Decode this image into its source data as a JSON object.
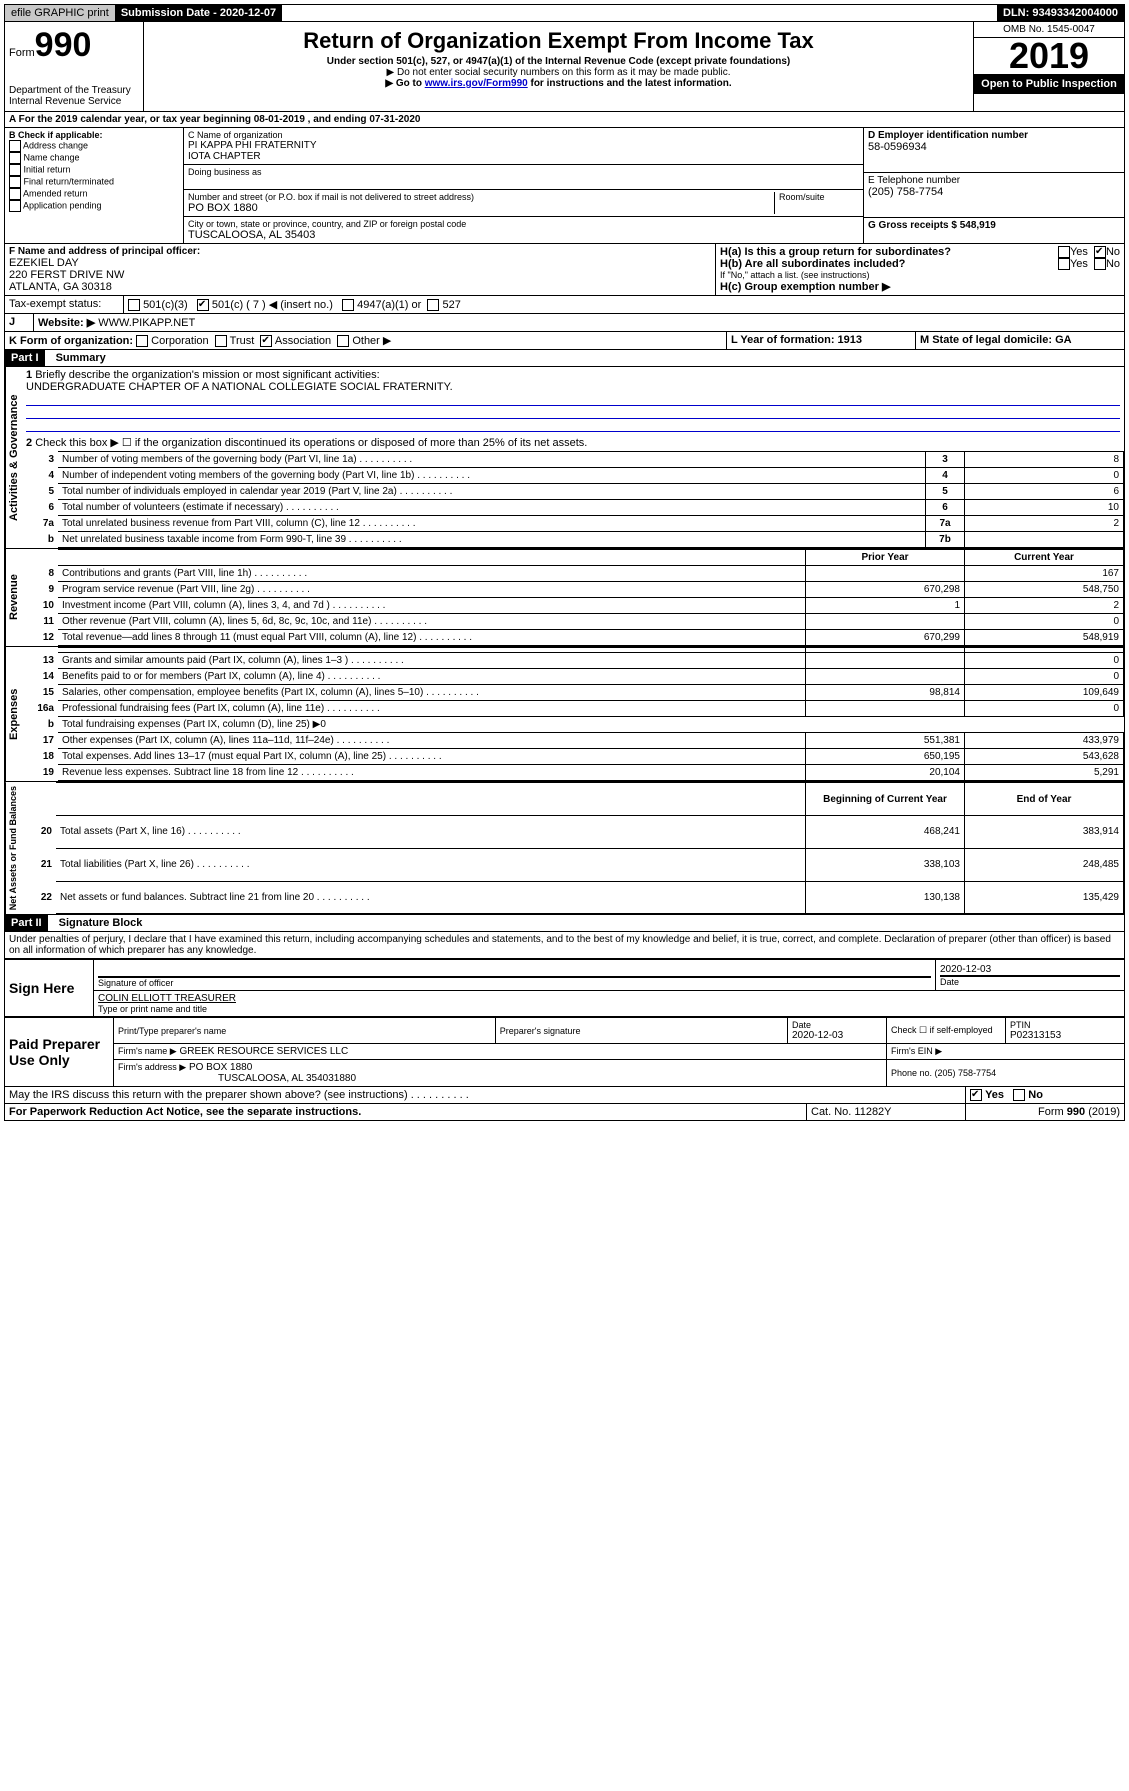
{
  "topbar": {
    "efile": "efile GRAPHIC print",
    "subdate_label": "Submission Date - 2020-12-07",
    "dln": "DLN: 93493342004000"
  },
  "header": {
    "form_label": "Form",
    "form_num": "990",
    "title": "Return of Organization Exempt From Income Tax",
    "subtitle": "Under section 501(c), 527, or 4947(a)(1) of the Internal Revenue Code (except private foundations)",
    "note1": "▶ Do not enter social security numbers on this form as it may be made public.",
    "note2_pre": "▶ Go to ",
    "note2_link": "www.irs.gov/Form990",
    "note2_post": " for instructions and the latest information.",
    "dept": "Department of the Treasury",
    "irs": "Internal Revenue Service",
    "omb": "OMB No. 1545-0047",
    "year": "2019",
    "inspect": "Open to Public Inspection"
  },
  "line_a": "A For the 2019 calendar year, or tax year beginning 08-01-2019   , and ending 07-31-2020",
  "section_b": {
    "label": "B Check if applicable:",
    "items": [
      "Address change",
      "Name change",
      "Initial return",
      "Final return/terminated",
      "Amended return",
      "Application pending"
    ]
  },
  "section_c": {
    "label": "C Name of organization",
    "name": "PI KAPPA PHI FRATERNITY\nIOTA CHAPTER",
    "dba_label": "Doing business as",
    "addr_label": "Number and street (or P.O. box if mail is not delivered to street address)",
    "room_label": "Room/suite",
    "addr": "PO BOX 1880",
    "city_label": "City or town, state or province, country, and ZIP or foreign postal code",
    "city": "TUSCALOOSA, AL  35403"
  },
  "section_d": {
    "label": "D Employer identification number",
    "val": "58-0596934"
  },
  "section_e": {
    "label": "E Telephone number",
    "val": "(205) 758-7754"
  },
  "section_g": {
    "label": "G Gross receipts $ 548,919"
  },
  "section_f": {
    "label": "F  Name and address of principal officer:",
    "name": "EZEKIEL DAY",
    "addr1": "220 FERST DRIVE NW",
    "addr2": "ATLANTA, GA  30318"
  },
  "section_h": {
    "ha": "H(a)  Is this a group return for subordinates?",
    "hb": "H(b)  Are all subordinates included?",
    "hb_note": "If \"No,\" attach a list. (see instructions)",
    "hc": "H(c)  Group exemption number ▶",
    "yes": "Yes",
    "no": "No"
  },
  "tax_exempt": {
    "label": "Tax-exempt status:",
    "c3": "501(c)(3)",
    "c7": "501(c) ( 7 ) ◀ (insert no.)",
    "a1": "4947(a)(1) or",
    "s527": "527"
  },
  "section_j": {
    "label": "J",
    "website_label": "Website: ▶",
    "website": "WWW.PIKAPP.NET"
  },
  "section_k": {
    "label": "K Form of organization:",
    "corp": "Corporation",
    "trust": "Trust",
    "assoc": "Association",
    "other": "Other ▶"
  },
  "section_l": {
    "label": "L Year of formation: 1913"
  },
  "section_m": {
    "label": "M State of legal domicile: GA"
  },
  "part1": {
    "header": "Part I",
    "title": "Summary",
    "q1_label": "1",
    "q1": "Briefly describe the organization's mission or most significant activities:",
    "q1_ans": "UNDERGRADUATE CHAPTER OF A NATIONAL COLLEGIATE SOCIAL FRATERNITY.",
    "q2_label": "2",
    "q2": "Check this box ▶ ☐  if the organization discontinued its operations or disposed of more than 25% of its net assets.",
    "vert_ag": "Activities & Governance",
    "vert_rev": "Revenue",
    "vert_exp": "Expenses",
    "vert_net": "Net Assets or Fund Balances",
    "prior": "Prior Year",
    "current": "Current Year",
    "begin": "Beginning of Current Year",
    "end": "End of Year",
    "rows_gov": [
      {
        "n": "3",
        "d": "Number of voting members of the governing body (Part VI, line 1a)",
        "box": "3",
        "v": "8"
      },
      {
        "n": "4",
        "d": "Number of independent voting members of the governing body (Part VI, line 1b)",
        "box": "4",
        "v": "0"
      },
      {
        "n": "5",
        "d": "Total number of individuals employed in calendar year 2019 (Part V, line 2a)",
        "box": "5",
        "v": "6"
      },
      {
        "n": "6",
        "d": "Total number of volunteers (estimate if necessary)",
        "box": "6",
        "v": "10"
      },
      {
        "n": "7a",
        "d": "Total unrelated business revenue from Part VIII, column (C), line 12",
        "box": "7a",
        "v": "2"
      },
      {
        "n": "b",
        "d": "Net unrelated business taxable income from Form 990-T, line 39",
        "box": "7b",
        "v": ""
      }
    ],
    "rows_rev": [
      {
        "n": "8",
        "d": "Contributions and grants (Part VIII, line 1h)",
        "p": "",
        "c": "167"
      },
      {
        "n": "9",
        "d": "Program service revenue (Part VIII, line 2g)",
        "p": "670,298",
        "c": "548,750"
      },
      {
        "n": "10",
        "d": "Investment income (Part VIII, column (A), lines 3, 4, and 7d )",
        "p": "1",
        "c": "2"
      },
      {
        "n": "11",
        "d": "Other revenue (Part VIII, column (A), lines 5, 6d, 8c, 9c, 10c, and 11e)",
        "p": "",
        "c": "0"
      },
      {
        "n": "12",
        "d": "Total revenue—add lines 8 through 11 (must equal Part VIII, column (A), line 12)",
        "p": "670,299",
        "c": "548,919"
      }
    ],
    "rows_exp": [
      {
        "n": "13",
        "d": "Grants and similar amounts paid (Part IX, column (A), lines 1–3 )",
        "p": "",
        "c": "0"
      },
      {
        "n": "14",
        "d": "Benefits paid to or for members (Part IX, column (A), line 4)",
        "p": "",
        "c": "0"
      },
      {
        "n": "15",
        "d": "Salaries, other compensation, employee benefits (Part IX, column (A), lines 5–10)",
        "p": "98,814",
        "c": "109,649"
      },
      {
        "n": "16a",
        "d": "Professional fundraising fees (Part IX, column (A), line 11e)",
        "p": "",
        "c": "0"
      },
      {
        "n": "b",
        "d": "Total fundraising expenses (Part IX, column (D), line 25) ▶0",
        "p": null,
        "c": null
      },
      {
        "n": "17",
        "d": "Other expenses (Part IX, column (A), lines 11a–11d, 11f–24e)",
        "p": "551,381",
        "c": "433,979"
      },
      {
        "n": "18",
        "d": "Total expenses. Add lines 13–17 (must equal Part IX, column (A), line 25)",
        "p": "650,195",
        "c": "543,628"
      },
      {
        "n": "19",
        "d": "Revenue less expenses. Subtract line 18 from line 12",
        "p": "20,104",
        "c": "5,291"
      }
    ],
    "rows_net": [
      {
        "n": "20",
        "d": "Total assets (Part X, line 16)",
        "p": "468,241",
        "c": "383,914"
      },
      {
        "n": "21",
        "d": "Total liabilities (Part X, line 26)",
        "p": "338,103",
        "c": "248,485"
      },
      {
        "n": "22",
        "d": "Net assets or fund balances. Subtract line 21 from line 20",
        "p": "130,138",
        "c": "135,429"
      }
    ]
  },
  "part2": {
    "header": "Part II",
    "title": "Signature Block",
    "decl": "Under penalties of perjury, I declare that I have examined this return, including accompanying schedules and statements, and to the best of my knowledge and belief, it is true, correct, and complete. Declaration of preparer (other than officer) is based on all information of which preparer has any knowledge.",
    "sign_here": "Sign Here",
    "sig_officer": "Signature of officer",
    "sig_date": "2020-12-03",
    "date_label": "Date",
    "typed_name": "COLIN ELLIOTT TREASURER",
    "typed_label": "Type or print name and title",
    "paid": "Paid Preparer Use Only",
    "prep_name_label": "Print/Type preparer's name",
    "prep_sig_label": "Preparer's signature",
    "prep_date_label": "Date",
    "prep_date": "2020-12-03",
    "check_self": "Check ☐ if self-employed",
    "ptin_label": "PTIN",
    "ptin": "P02313153",
    "firm_name_label": "Firm's name    ▶",
    "firm_name": "GREEK RESOURCE SERVICES LLC",
    "firm_ein_label": "Firm's EIN ▶",
    "firm_addr_label": "Firm's address ▶",
    "firm_addr": "PO BOX 1880",
    "firm_city": "TUSCALOOSA, AL  354031880",
    "phone_label": "Phone no. (205) 758-7754",
    "discuss": "May the IRS discuss this return with the preparer shown above? (see instructions)",
    "paperwork": "For Paperwork Reduction Act Notice, see the separate instructions.",
    "cat": "Cat. No. 11282Y",
    "form_foot": "Form 990 (2019)"
  }
}
